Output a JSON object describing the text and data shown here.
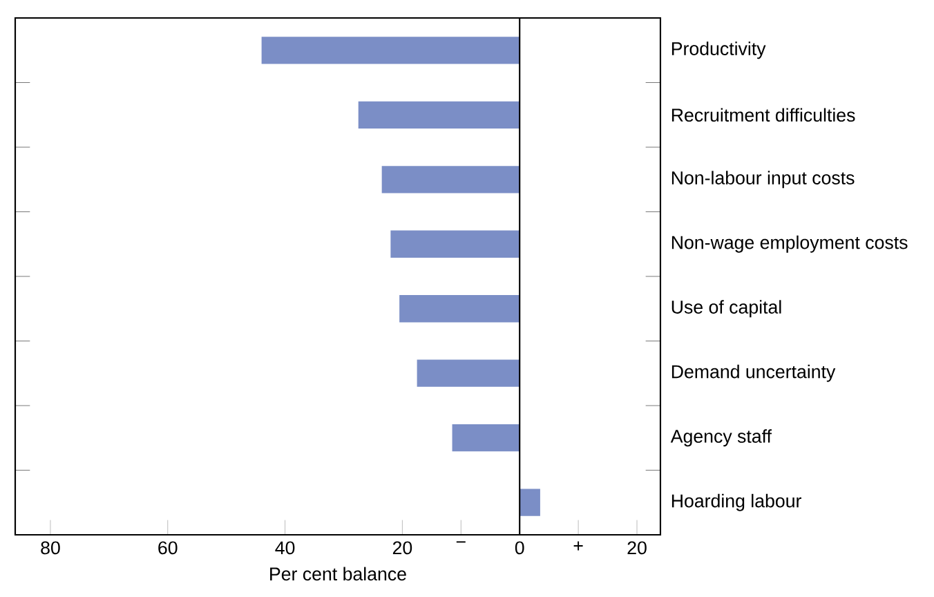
{
  "chart_data": {
    "type": "bar",
    "orientation": "horizontal",
    "xlabel": "Per cent balance",
    "categories": [
      "Productivity",
      "Recruitment difficulties",
      "Non-labour input costs",
      "Non-wage employment costs",
      "Use of capital",
      "Demand uncertainty",
      "Agency staff",
      "Hoarding labour"
    ],
    "values": [
      -44,
      -27.5,
      -23.5,
      -22,
      -20.5,
      -17.5,
      -11.5,
      3.5
    ],
    "color": "#7b8ec6",
    "xlim": [
      -86,
      24
    ],
    "xticks": [
      {
        "value": -80,
        "label": "80"
      },
      {
        "value": -60,
        "label": "60"
      },
      {
        "value": -40,
        "label": "40"
      },
      {
        "value": -20,
        "label": "20"
      },
      {
        "value": -10,
        "label": "−"
      },
      0,
      {
        "value": 10,
        "label": "+"
      },
      20
    ]
  }
}
